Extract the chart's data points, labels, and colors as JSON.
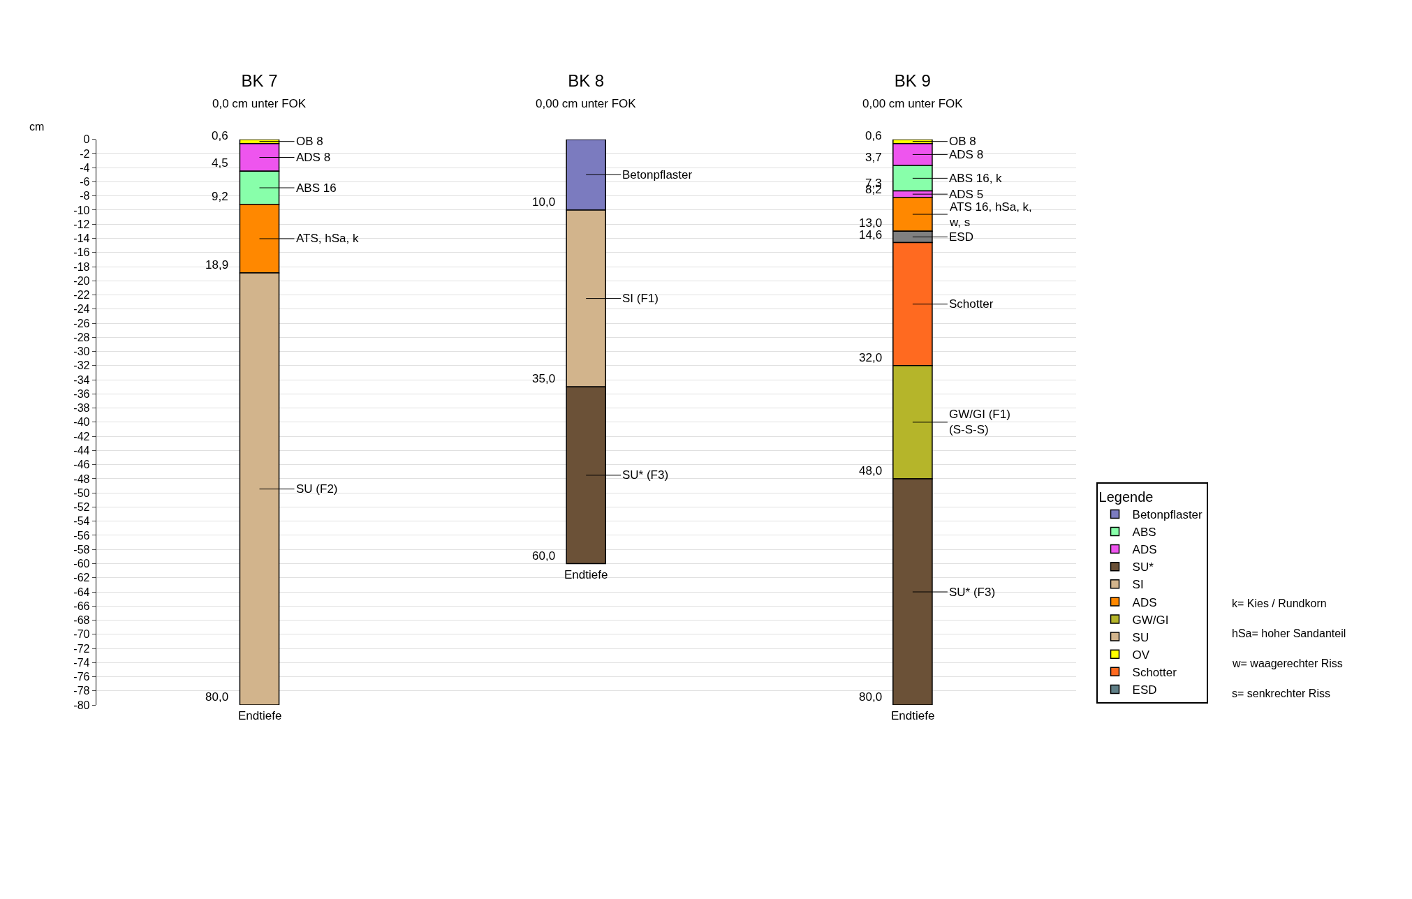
{
  "chart_data": [
    {
      "type": "bar",
      "stacked": true,
      "ylabel": "cm",
      "categories": [
        "BK 7",
        "BK 8",
        "BK 9"
      ],
      "ylim": [
        -80,
        0
      ],
      "yticks": [
        0,
        -2,
        -4,
        -6,
        -8,
        -10,
        -12,
        -14,
        -16,
        -18,
        -20,
        -22,
        -24,
        -26,
        -28,
        -30,
        -32,
        -34,
        -36,
        -38,
        -40,
        -42,
        -44,
        -46,
        -48,
        -50,
        -52,
        -54,
        -56,
        -58,
        -60,
        -62,
        -64,
        -66,
        -68,
        -70,
        -72,
        -74,
        -76,
        -78,
        -80
      ],
      "grid": "y",
      "series": [
        {
          "values": [
            -0.6,
            -10,
            -0.6
          ],
          "colors": [
            "#ffff00",
            "#7b7bbf",
            "#ffff00"
          ],
          "value_labels": [
            "OB 8",
            "Betonpflaster",
            "OB 8"
          ]
        },
        {
          "values": [
            -3.9,
            -25,
            -3.1
          ],
          "colors": [
            "#ee55ee",
            "#d2b48c",
            "#ee55ee"
          ],
          "value_labels": [
            "ADS 8",
            "SI (F1)",
            "ADS 8"
          ]
        },
        {
          "values": [
            -4.7,
            -25,
            -3.6
          ],
          "colors": [
            "#88ffaa",
            "#6b5137",
            "#88ffaa"
          ],
          "value_labels": [
            "ABS 16",
            "SU* (F3)",
            "ABS 16, k"
          ]
        },
        {
          "values": [
            -9.7,
            null,
            -0.9
          ],
          "colors": [
            "#ff8800",
            null,
            "#ee55ee"
          ],
          "value_labels": [
            "ATS, hSa, k",
            null,
            "ADS 5"
          ]
        },
        {
          "values": [
            -61.1,
            null,
            -4.8
          ],
          "colors": [
            "#d2b48c",
            null,
            "#ff8800"
          ],
          "value_labels": [
            "SU (F2)",
            null,
            "ATS 16, hSa, k,\nw, s"
          ]
        },
        {
          "values": [
            null,
            null,
            -1.6
          ],
          "colors": [
            null,
            null,
            "#808080"
          ],
          "value_labels": [
            null,
            null,
            "ESD"
          ]
        },
        {
          "values": [
            null,
            null,
            -17.4
          ],
          "colors": [
            null,
            null,
            "#ff6a20"
          ],
          "value_labels": [
            null,
            null,
            "Schotter"
          ]
        },
        {
          "values": [
            null,
            null,
            -16
          ],
          "colors": [
            null,
            null,
            "#b5b52a"
          ],
          "value_labels": [
            null,
            null,
            "GW/GI (F1)\n(S-S-S)"
          ]
        },
        {
          "values": [
            null,
            null,
            -32
          ],
          "colors": [
            null,
            null,
            "#6b5137"
          ],
          "value_labels": [
            null,
            null,
            "SU* (F3)"
          ]
        }
      ],
      "annotations": [
        "0,0 cm unter FOK",
        "0,00 cm unter FOK",
        "0,00 cm unter FOK",
        {
          "text": "0,6",
          "x": "BK 7",
          "y": -0.6
        },
        {
          "text": "4,5",
          "x": "BK 7",
          "y": -4.5
        },
        {
          "text": "9,2",
          "x": "BK 7",
          "y": -9.2
        },
        {
          "text": "18,9",
          "x": "BK 7",
          "y": -18.9
        },
        {
          "text": "80,0",
          "x": "BK 7",
          "y": -80
        },
        {
          "text": "Endtiefe",
          "x": "BK 7",
          "y": -80
        },
        {
          "text": "10,0",
          "x": "BK 8",
          "y": -10
        },
        {
          "text": "35,0",
          "x": "BK 8",
          "y": -35
        },
        {
          "text": "60,0",
          "x": "BK 8",
          "y": -60
        },
        {
          "text": "Endtiefe",
          "x": "BK 8",
          "y": -60
        },
        {
          "text": "0,6",
          "x": "BK 9",
          "y": -0.6
        },
        {
          "text": "3,7",
          "x": "BK 9",
          "y": -3.7
        },
        {
          "text": "7,3",
          "x": "BK 9",
          "y": -7.3
        },
        {
          "text": "8,2",
          "x": "BK 9",
          "y": -8.2
        },
        {
          "text": "13,0",
          "x": "BK 9",
          "y": -13
        },
        {
          "text": "14,6",
          "x": "BK 9",
          "y": -14.6
        },
        {
          "text": "32,0",
          "x": "BK 9",
          "y": -32
        },
        {
          "text": "48,0",
          "x": "BK 9",
          "y": -48
        },
        {
          "text": "80,0",
          "x": "BK 9",
          "y": -80
        },
        {
          "text": "Endtiefe",
          "x": "BK 9",
          "y": -80
        }
      ]
    },
    {
      "type": "other",
      "legend_title": "Legende",
      "categories": [
        "Betonpflaster",
        "ABS",
        "ADS",
        "SU*",
        "SI",
        "ADS",
        "GW/GI",
        "SU",
        "OV",
        "Schotter",
        "ESD"
      ],
      "colors": [
        "#7b7bbf",
        "#88ffaa",
        "#ee55ee",
        "#6b5137",
        "#d2b48c",
        "#ff8800",
        "#b5b52a",
        "#d2b48c",
        "#ffff00",
        "#ff6a20",
        "#5f7f87"
      ],
      "annotations": [
        "k= Kies / Rundkorn",
        "hSa= hoher Sandanteil",
        "w= waagerechter Riss",
        "s= senkrechter Riss"
      ]
    }
  ]
}
